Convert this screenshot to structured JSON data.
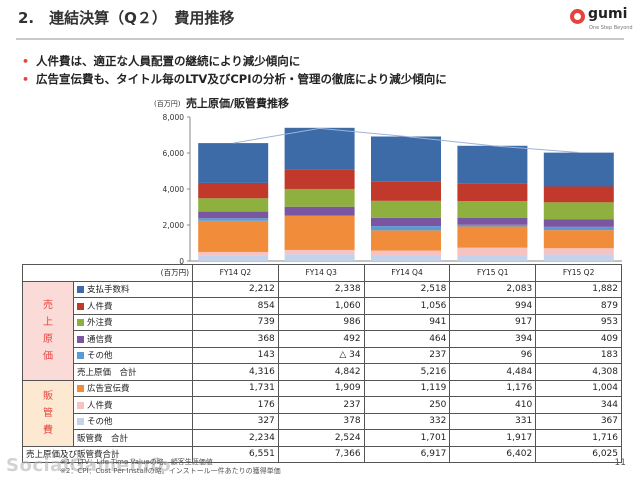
{
  "header": {
    "title": "2.　連結決算（Q２）　費用推移",
    "logo_text": "gumi",
    "logo_sub": "One Step Beyond"
  },
  "bullets": [
    "人件費は、適正な人員配置の継続により減少傾向に",
    "広告宣伝費も、タイトル毎のLTV及びCPIの分析・管理の徹底により減少傾向に"
  ],
  "chart_data": {
    "type": "bar",
    "subtype": "stacked",
    "title": "売上原価/販管費推移",
    "unit_label": "(百万円)",
    "categories": [
      "FY14 Q2",
      "FY14 Q3",
      "FY14 Q4",
      "FY15 Q1",
      "FY15 Q2"
    ],
    "ylim": [
      0,
      8000
    ],
    "yticks": [
      "0",
      "2,000",
      "4,000",
      "6,000",
      "8,000"
    ],
    "line_total": [
      6551,
      7366,
      6917,
      6402,
      6025
    ],
    "series": [
      {
        "color": "#c5d3ea",
        "values": [
          327,
          378,
          332,
          331,
          367
        ]
      },
      {
        "color": "#f6c3c0",
        "values": [
          176,
          237,
          250,
          410,
          344
        ]
      },
      {
        "color": "#f08c3a",
        "values": [
          1731,
          1909,
          1119,
          1176,
          1004
        ]
      },
      {
        "color": "#5b9bd5",
        "values": [
          143,
          -34,
          237,
          96,
          183
        ]
      },
      {
        "color": "#7a56a0",
        "values": [
          368,
          492,
          464,
          394,
          409
        ]
      },
      {
        "color": "#8db03f",
        "values": [
          739,
          986,
          941,
          917,
          953
        ]
      },
      {
        "color": "#c0392b",
        "values": [
          854,
          1060,
          1056,
          994,
          879
        ]
      },
      {
        "color": "#3d6ba8",
        "values": [
          2212,
          2338,
          2518,
          2083,
          1882
        ]
      }
    ]
  },
  "table": {
    "unit_label": "(百万円)",
    "columns": [
      "FY14 Q2",
      "FY14 Q3",
      "FY14 Q4",
      "FY15 Q1",
      "FY15 Q2"
    ],
    "group1_label": "売上原価",
    "group1_rows": [
      {
        "label": "支払手数料",
        "color": "#3d6ba8",
        "values": [
          "2,212",
          "2,338",
          "2,518",
          "2,083",
          "1,882"
        ]
      },
      {
        "label": "人件費",
        "color": "#c0392b",
        "values": [
          "854",
          "1,060",
          "1,056",
          "994",
          "879"
        ]
      },
      {
        "label": "外注費",
        "color": "#8db03f",
        "values": [
          "739",
          "986",
          "941",
          "917",
          "953"
        ]
      },
      {
        "label": "通信費",
        "color": "#7a56a0",
        "values": [
          "368",
          "492",
          "464",
          "394",
          "409"
        ]
      },
      {
        "label": "その他",
        "color": "#5b9bd5",
        "values": [
          "143",
          "△ 34",
          "237",
          "96",
          "183"
        ]
      }
    ],
    "group1_total": {
      "label": "売上原価　合計",
      "values": [
        "4,316",
        "4,842",
        "5,216",
        "4,484",
        "4,308"
      ]
    },
    "group2_label": "販管費",
    "group2_rows": [
      {
        "label": "広告宣伝費",
        "color": "#f08c3a",
        "values": [
          "1,731",
          "1,909",
          "1,119",
          "1,176",
          "1,004"
        ]
      },
      {
        "label": "人件費",
        "color": "#f6c3c0",
        "values": [
          "176",
          "237",
          "250",
          "410",
          "344"
        ]
      },
      {
        "label": "その他",
        "color": "#c5d3ea",
        "values": [
          "327",
          "378",
          "332",
          "331",
          "367"
        ]
      }
    ],
    "group2_total": {
      "label": "販管費　合計",
      "values": [
        "2,234",
        "2,524",
        "1,701",
        "1,917",
        "1,716"
      ]
    },
    "grand_total": {
      "label": "売上原価及び販管費合計",
      "values": [
        "6,551",
        "7,366",
        "6,917",
        "6,402",
        "6,025"
      ]
    }
  },
  "footnotes": [
    "※1：LTV：Life Time Valueの略。顧客生涯価値",
    "※2：CPI：Cost Per Installの略。インストール一件あたりの獲得単価"
  ],
  "watermark": "SocialGameInfo",
  "page_number": "11"
}
